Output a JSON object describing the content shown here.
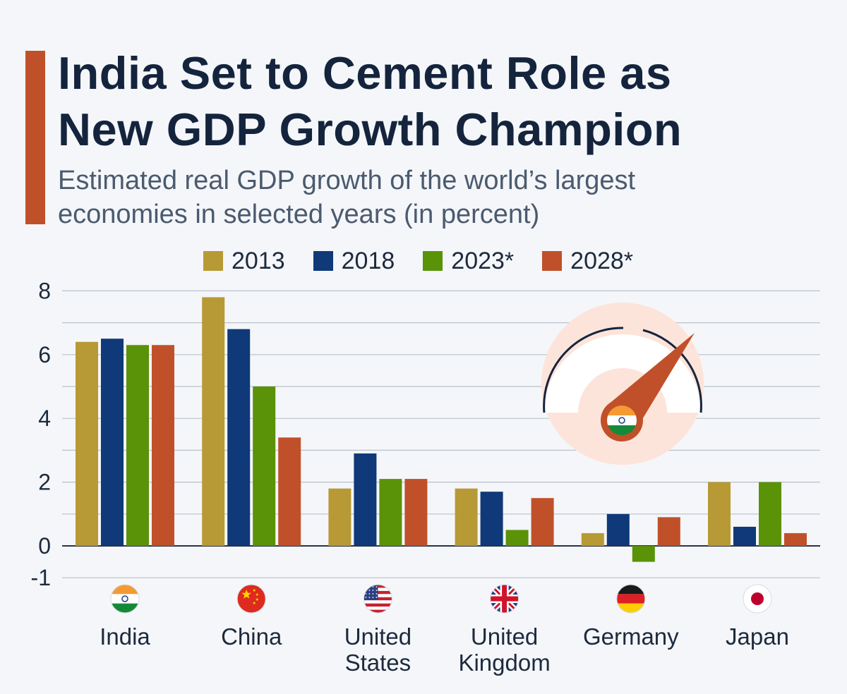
{
  "title_line1": "India Set to Cement Role as",
  "title_line2": "New GDP Growth Champion",
  "subtitle_line1": "Estimated real GDP growth of the world’s largest",
  "subtitle_line2": "economies in selected years (in percent)",
  "colors": {
    "accent": "#c0502a",
    "title": "#15243d",
    "y2013": "#b79a35",
    "y2018": "#0f3978",
    "y2023": "#5a9208",
    "y2028": "#c0502a",
    "gauge_bg": "#fde4da"
  },
  "chart_data": {
    "type": "bar",
    "categories": [
      "India",
      "China",
      "United States",
      "United Kingdom",
      "Germany",
      "Japan"
    ],
    "category_lines": [
      [
        "India"
      ],
      [
        "China"
      ],
      [
        "United",
        "States"
      ],
      [
        "United",
        "Kingdom"
      ],
      [
        "Germany"
      ],
      [
        "Japan"
      ]
    ],
    "series": [
      {
        "name": "2013",
        "legend": "2013",
        "values": [
          6.4,
          7.8,
          1.8,
          1.8,
          0.4,
          2.0
        ]
      },
      {
        "name": "2018",
        "legend": "2018",
        "values": [
          6.5,
          6.8,
          2.9,
          1.7,
          1.0,
          0.6
        ]
      },
      {
        "name": "2023*",
        "legend": "2023*",
        "values": [
          6.3,
          5.0,
          2.1,
          0.5,
          -0.5,
          2.0
        ]
      },
      {
        "name": "2028*",
        "legend": "2028*",
        "values": [
          6.3,
          3.4,
          2.1,
          1.5,
          0.9,
          0.4
        ]
      }
    ],
    "ylim": [
      -1,
      8
    ],
    "yticks": [
      8,
      6,
      4,
      2,
      0,
      -1
    ],
    "grid": true,
    "legend_position": "top",
    "flags": [
      "india-flag",
      "china-flag",
      "us-flag",
      "uk-flag",
      "germany-flag",
      "japan-flag"
    ]
  }
}
